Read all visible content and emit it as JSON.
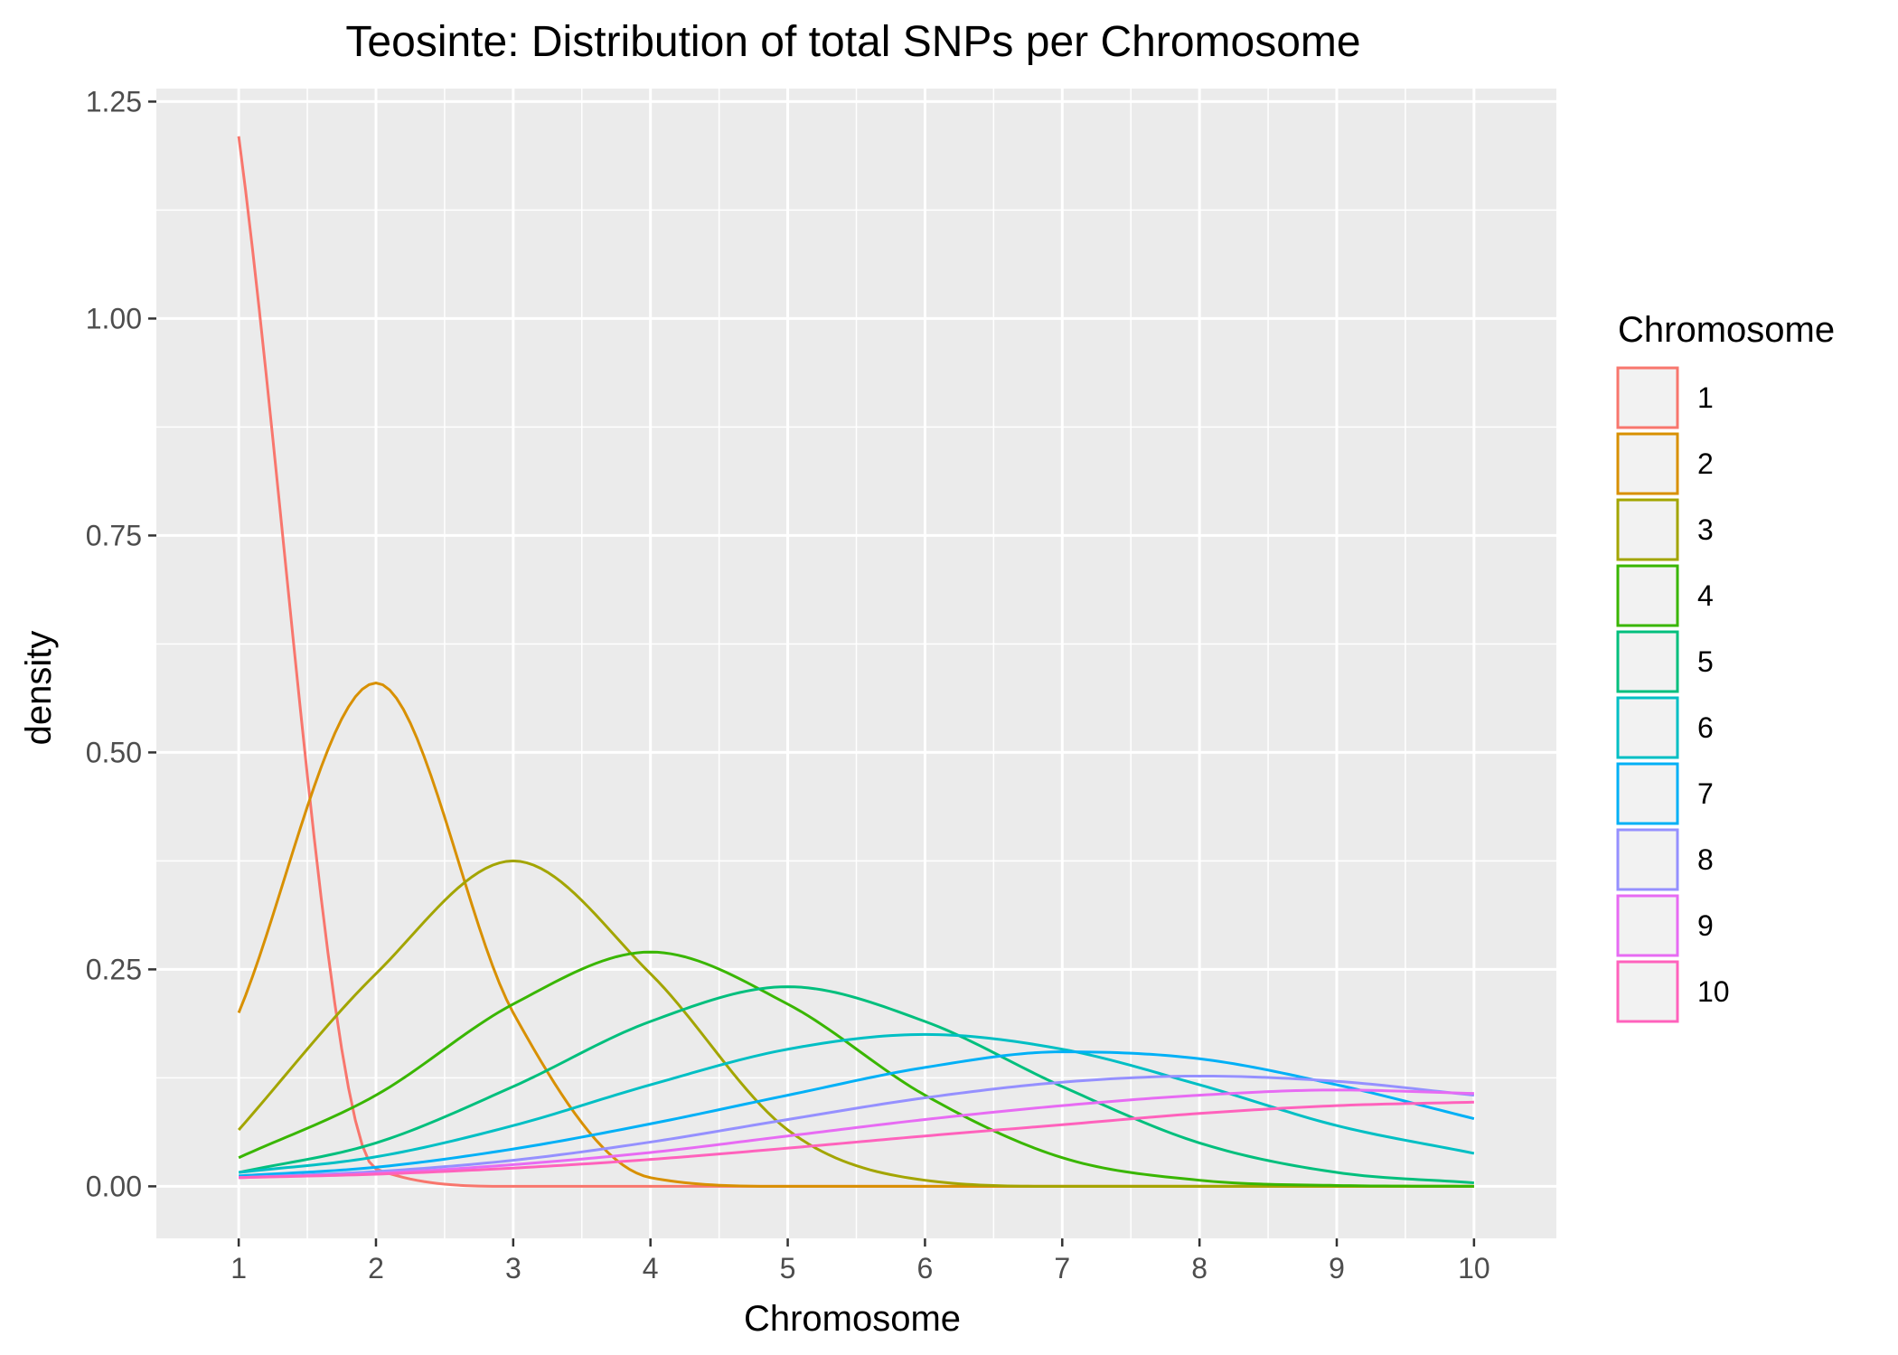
{
  "chart_data": {
    "type": "line",
    "title": "Teosinte: Distribution of total SNPs per Chromosome",
    "xlabel": "Chromosome",
    "ylabel": "density",
    "xlim": [
      0.4,
      10.6
    ],
    "ylim": [
      -0.06,
      1.265
    ],
    "x_ticks": [
      "1",
      "2",
      "3",
      "4",
      "5",
      "6",
      "7",
      "8",
      "9",
      "10"
    ],
    "y_ticks": [
      "0.00",
      "0.25",
      "0.50",
      "0.75",
      "1.00",
      "1.25"
    ],
    "grid": true,
    "panel_background": "#ebebeb",
    "grid_color": "#ffffff",
    "legend": {
      "title": "Chromosome",
      "placement": "right",
      "entries": [
        "1",
        "2",
        "3",
        "4",
        "5",
        "6",
        "7",
        "8",
        "9",
        "10"
      ]
    },
    "x": [
      1,
      2,
      3,
      4,
      5,
      6,
      7,
      8,
      9,
      10
    ],
    "series": [
      {
        "name": "1",
        "color": "#F8766D",
        "values": [
          1.21,
          0.02,
          0.0,
          0.0,
          0.0,
          0.0,
          0.0,
          0.0,
          0.0,
          0.0
        ]
      },
      {
        "name": "2",
        "color": "#D89000",
        "values": [
          0.2,
          0.58,
          0.2,
          0.01,
          0.0,
          0.0,
          0.0,
          0.0,
          0.0,
          0.0
        ]
      },
      {
        "name": "3",
        "color": "#A3A500",
        "values": [
          0.065,
          0.245,
          0.375,
          0.245,
          0.065,
          0.007,
          0.0,
          0.0,
          0.0,
          0.0
        ]
      },
      {
        "name": "4",
        "color": "#39B600",
        "values": [
          0.033,
          0.105,
          0.21,
          0.27,
          0.21,
          0.105,
          0.033,
          0.007,
          0.001,
          0.0
        ]
      },
      {
        "name": "5",
        "color": "#00BF7D",
        "values": [
          0.016,
          0.05,
          0.115,
          0.19,
          0.23,
          0.19,
          0.115,
          0.05,
          0.016,
          0.004
        ]
      },
      {
        "name": "6",
        "color": "#00BFC4",
        "values": [
          0.016,
          0.034,
          0.07,
          0.117,
          0.158,
          0.175,
          0.158,
          0.117,
          0.07,
          0.038
        ]
      },
      {
        "name": "7",
        "color": "#00B0F6",
        "values": [
          0.012,
          0.022,
          0.043,
          0.072,
          0.105,
          0.137,
          0.155,
          0.147,
          0.117,
          0.078
        ]
      },
      {
        "name": "8",
        "color": "#9590FF",
        "values": [
          0.01,
          0.017,
          0.03,
          0.051,
          0.077,
          0.102,
          0.12,
          0.127,
          0.121,
          0.105
        ]
      },
      {
        "name": "9",
        "color": "#E76BF3",
        "values": [
          0.01,
          0.015,
          0.025,
          0.039,
          0.058,
          0.077,
          0.093,
          0.105,
          0.111,
          0.107
        ]
      },
      {
        "name": "10",
        "color": "#FF62BC",
        "values": [
          0.01,
          0.014,
          0.021,
          0.031,
          0.044,
          0.058,
          0.071,
          0.084,
          0.093,
          0.097
        ]
      }
    ]
  }
}
